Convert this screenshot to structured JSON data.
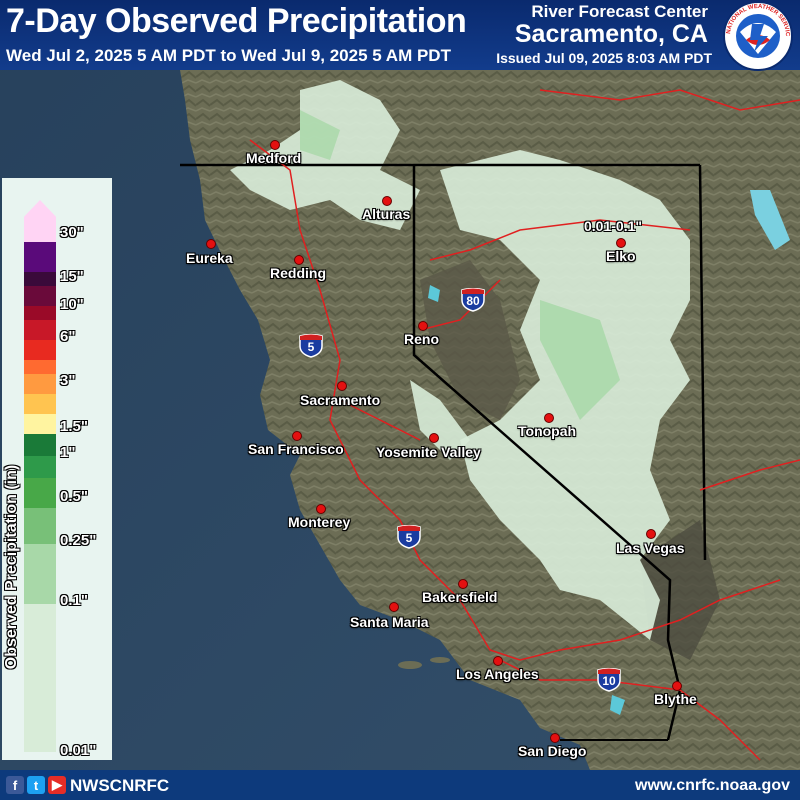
{
  "header": {
    "title": "7-Day Observed Precipitation",
    "subtitle": "Wed Jul 2, 2025 5 AM PDT to Wed Jul 9, 2025 5 AM PDT",
    "org": "River Forecast Center",
    "location": "Sacramento, CA",
    "issued": "Issued Jul 09, 2025 8:03 AM PDT",
    "logo_text": "NATIONAL WEATHER SERVICE"
  },
  "legend": {
    "axis_label": "Observed Precipitation (in)",
    "bins": [
      {
        "color": "#d8ecd8"
      },
      {
        "color": "#a8d8a8"
      },
      {
        "color": "#78c078"
      },
      {
        "color": "#48a848"
      },
      {
        "color": "#2e9a4a"
      },
      {
        "color": "#1a7a38"
      },
      {
        "color": "#fff4a0"
      },
      {
        "color": "#ffc450"
      },
      {
        "color": "#ff9a40"
      },
      {
        "color": "#ff6a30"
      },
      {
        "color": "#e82a20"
      },
      {
        "color": "#c81828"
      },
      {
        "color": "#9a0a28"
      },
      {
        "color": "#6a0a3a"
      },
      {
        "color": "#3a0a3a"
      },
      {
        "color": "#5a0a7a"
      },
      {
        "color": "#ffd4f4"
      }
    ],
    "ticks": [
      "30\"",
      "15\"",
      "10\"",
      "6\"",
      "3\"",
      "1.5\"",
      "1\"",
      "0.5\"",
      "0.25\"",
      "0.1\"",
      "0.01\""
    ]
  },
  "cities": [
    {
      "name": "Medford"
    },
    {
      "name": "Alturas"
    },
    {
      "name": "Eureka"
    },
    {
      "name": "Redding"
    },
    {
      "name": "Elko"
    },
    {
      "name": "Reno"
    },
    {
      "name": "Sacramento"
    },
    {
      "name": "San Francisco"
    },
    {
      "name": "Tonopah"
    },
    {
      "name": "Yosemite Valley"
    },
    {
      "name": "Monterey"
    },
    {
      "name": "Las Vegas"
    },
    {
      "name": "Bakersfield"
    },
    {
      "name": "Santa Maria"
    },
    {
      "name": "Los Angeles"
    },
    {
      "name": "Blythe"
    },
    {
      "name": "San Diego"
    }
  ],
  "annotation": "0.01-0.1\"",
  "highways": [
    "80",
    "5",
    "5",
    "10"
  ],
  "footer": {
    "handle": "NWSCNRFC",
    "website": "www.cnrfc.noaa.gov",
    "social_icons": [
      "facebook-icon",
      "twitter-icon",
      "youtube-icon"
    ]
  },
  "colors": {
    "header_bg": "#0a2a6e",
    "ocean": "#2a4a66",
    "land": "#6f7258",
    "precip_light": "#d8ecd8",
    "boundary": "#e02020",
    "city_dot": "#e41010"
  }
}
